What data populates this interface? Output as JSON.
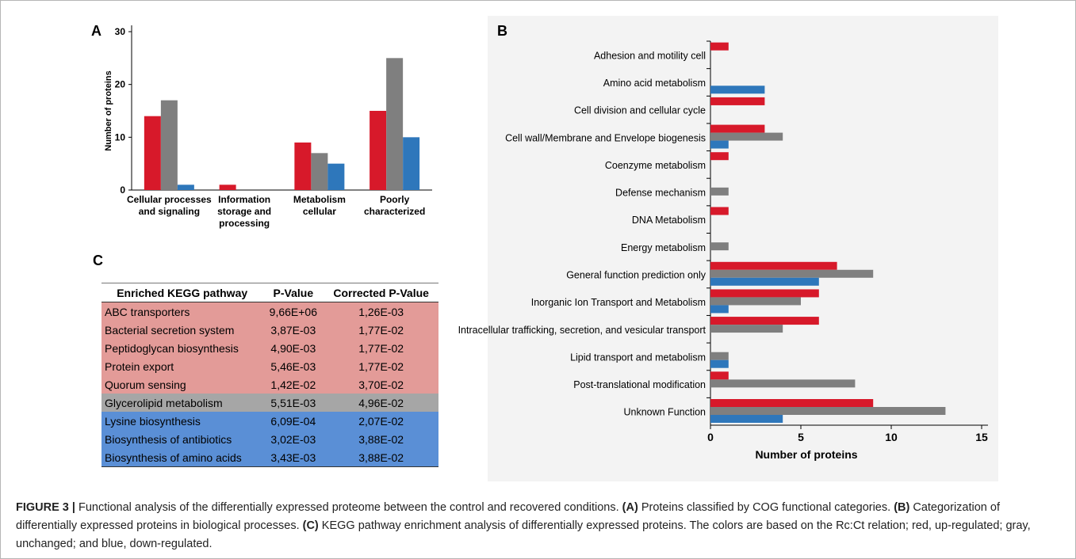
{
  "panel_labels": {
    "a": "A",
    "b": "B",
    "c": "C"
  },
  "colors": {
    "up": "#d7192a",
    "unchanged": "#7f7f7f",
    "down": "#2e77bb",
    "table_up": "#e39b98",
    "table_unchanged": "#a6a6a6",
    "table_down": "#5a8fd6"
  },
  "chart_data": [
    {
      "type": "bar",
      "panel": "A",
      "ylabel": "Number of proteins",
      "xlabel": "",
      "ylim": [
        0,
        30
      ],
      "yticks": [
        0,
        10,
        20,
        30
      ],
      "categories": [
        [
          "Cellular processes",
          "and signaling"
        ],
        [
          "Information",
          "storage and",
          "processing"
        ],
        [
          "Metabolism",
          "cellular"
        ],
        [
          "Poorly",
          "characterized"
        ]
      ],
      "series": [
        {
          "color": "#d7192a",
          "values": [
            14,
            1,
            9,
            15
          ]
        },
        {
          "color": "#7f7f7f",
          "values": [
            17,
            0,
            7,
            25
          ]
        },
        {
          "color": "#2e77bb",
          "values": [
            1,
            0,
            5,
            10
          ]
        }
      ]
    },
    {
      "type": "bar",
      "orientation": "horizontal",
      "panel": "B",
      "xlabel": "Number of proteins",
      "ylabel": "",
      "xlim": [
        0,
        15
      ],
      "xticks": [
        0,
        5,
        10,
        15
      ],
      "categories": [
        "Adhesion and motility cell",
        "Amino acid metabolism",
        "Cell division and cellular cycle",
        "Cell wall/Membrane and Envelope biogenesis",
        "Coenzyme metabolism",
        "Defense mechanism",
        "DNA Metabolism",
        "Energy metabolism",
        "General function prediction only",
        "Inorganic Ion Transport and Metabolism",
        "Intracellular trafficking, secretion, and vesicular transport",
        "Lipid transport and metabolism",
        "Post-translational modification",
        "Unknown Function"
      ],
      "series": [
        {
          "color": "#d7192a",
          "values": [
            1,
            0,
            3,
            3,
            1,
            0,
            1,
            0,
            7,
            6,
            6,
            0,
            1,
            9
          ]
        },
        {
          "color": "#7f7f7f",
          "values": [
            0,
            0,
            0,
            4,
            0,
            1,
            0,
            1,
            9,
            5,
            4,
            1,
            8,
            13
          ]
        },
        {
          "color": "#2e77bb",
          "values": [
            0,
            3,
            0,
            1,
            0,
            0,
            0,
            0,
            6,
            1,
            0,
            1,
            0,
            4
          ]
        }
      ]
    },
    {
      "type": "table",
      "panel": "C",
      "headers": [
        "Enriched KEGG pathway",
        "P-Value",
        "Corrected P-Value"
      ],
      "rows": [
        {
          "group": "up",
          "cells": [
            "ABC transporters",
            "9,66E+06",
            "1,26E-03"
          ]
        },
        {
          "group": "up",
          "cells": [
            "Bacterial secretion system",
            "3,87E-03",
            "1,77E-02"
          ]
        },
        {
          "group": "up",
          "cells": [
            "Peptidoglycan biosynthesis",
            "4,90E-03",
            "1,77E-02"
          ]
        },
        {
          "group": "up",
          "cells": [
            "Protein export",
            "5,46E-03",
            "1,77E-02"
          ]
        },
        {
          "group": "up",
          "cells": [
            "Quorum sensing",
            "1,42E-02",
            "3,70E-02"
          ]
        },
        {
          "group": "unchanged",
          "cells": [
            "Glycerolipid metabolism",
            "5,51E-03",
            "4,96E-02"
          ]
        },
        {
          "group": "down",
          "cells": [
            "Lysine biosynthesis",
            "6,09E-04",
            "2,07E-02"
          ]
        },
        {
          "group": "down",
          "cells": [
            "Biosynthesis of antibiotics",
            "3,02E-03",
            "3,88E-02"
          ]
        },
        {
          "group": "down",
          "cells": [
            "Biosynthesis of amino acids",
            "3,43E-03",
            "3,88E-02"
          ]
        }
      ]
    }
  ],
  "caption": {
    "label": "FIGURE 3 |",
    "intro": " Functional analysis of the differentially expressed proteome between the control and recovered conditions. ",
    "a_tag": "(A)",
    "a_text": " Proteins classified by COG functional categories. ",
    "b_tag": "(B)",
    "b_text": " Categorization of differentially expressed proteins in biological processes. ",
    "c_tag": "(C)",
    "c_text": " KEGG pathway enrichment analysis of differentially expressed proteins. The colors are based on the Rc:Ct relation; red, up-regulated; gray, unchanged; and blue, down-regulated."
  }
}
